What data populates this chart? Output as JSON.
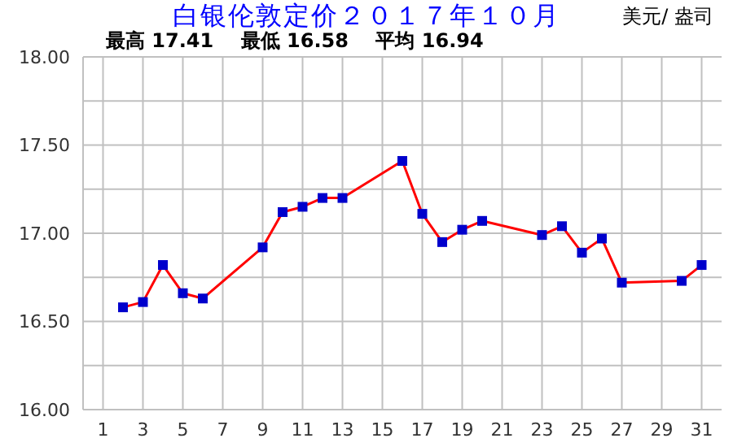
{
  "chart_data": {
    "type": "line",
    "title": "白银伦敦定价２０１７年１０月",
    "subtitle": "最高 17.41    最低 16.58    平均 16.94",
    "ylabel": "美元/ 盎司",
    "x": [
      2,
      3,
      4,
      5,
      6,
      9,
      10,
      11,
      12,
      13,
      16,
      17,
      18,
      19,
      20,
      23,
      24,
      25,
      26,
      27,
      30,
      31
    ],
    "series": [
      {
        "color": "#ff0000",
        "values": [
          16.58,
          16.61,
          16.82,
          16.66,
          16.63,
          16.92,
          17.12,
          17.15,
          17.2,
          17.2,
          17.41,
          17.11,
          16.95,
          17.02,
          17.07,
          16.99,
          17.04,
          16.89,
          16.97,
          16.72,
          16.73,
          16.82
        ]
      }
    ],
    "xlim": [
      0,
      32
    ],
    "xticks": [
      1,
      3,
      5,
      7,
      9,
      11,
      13,
      15,
      17,
      19,
      21,
      23,
      25,
      27,
      29,
      31
    ],
    "ylim": [
      16,
      18
    ],
    "yticks": [
      {
        "value": 16,
        "label": "16.00"
      },
      {
        "value": 16.25,
        "label": null
      },
      {
        "value": 16.5,
        "label": "16.50"
      },
      {
        "value": 16.75,
        "label": null
      },
      {
        "value": 17,
        "label": "17.00"
      },
      {
        "value": 17.25,
        "label": null
      },
      {
        "value": 17.5,
        "label": "17.50"
      },
      {
        "value": 17.75,
        "label": null
      },
      {
        "value": 18,
        "label": "18.00"
      }
    ],
    "grid": true,
    "marker": "square"
  }
}
